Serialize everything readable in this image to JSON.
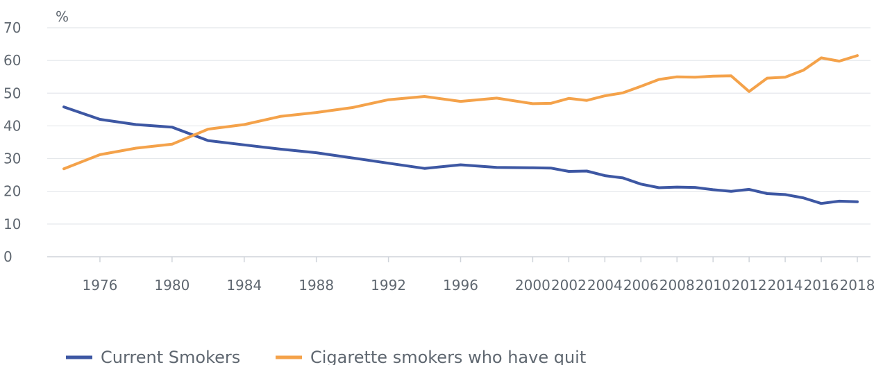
{
  "chart_data": {
    "type": "line",
    "unit_label": "%",
    "ylim": [
      0,
      70
    ],
    "y_ticks": [
      0,
      10,
      20,
      30,
      40,
      50,
      60,
      70
    ],
    "x_range": [
      1974,
      2018
    ],
    "x_tick_labels": [
      "1976",
      "1980",
      "1984",
      "1988",
      "1992",
      "1996",
      "2000",
      "2002",
      "2004",
      "2006",
      "2008",
      "2010",
      "2012",
      "2014",
      "2016",
      "2018"
    ],
    "grid": true,
    "legend_position": "bottom-left",
    "series": [
      {
        "name": "Current Smokers",
        "color": "#3d57a3",
        "points": [
          [
            1974,
            45.8
          ],
          [
            1976,
            42.0
          ],
          [
            1978,
            40.4
          ],
          [
            1980,
            39.6
          ],
          [
            1982,
            35.5
          ],
          [
            1984,
            34.2
          ],
          [
            1986,
            32.9
          ],
          [
            1988,
            31.8
          ],
          [
            1990,
            30.2
          ],
          [
            1992,
            28.6
          ],
          [
            1994,
            27.0
          ],
          [
            1996,
            28.1
          ],
          [
            1998,
            27.3
          ],
          [
            2000,
            27.2
          ],
          [
            2001,
            27.1
          ],
          [
            2002,
            26.1
          ],
          [
            2003,
            26.2
          ],
          [
            2004,
            24.8
          ],
          [
            2005,
            24.1
          ],
          [
            2006,
            22.2
          ],
          [
            2007,
            21.1
          ],
          [
            2008,
            21.3
          ],
          [
            2009,
            21.2
          ],
          [
            2010,
            20.5
          ],
          [
            2011,
            20.0
          ],
          [
            2012,
            20.6
          ],
          [
            2013,
            19.3
          ],
          [
            2014,
            19.0
          ],
          [
            2015,
            18.0
          ],
          [
            2016,
            16.3
          ],
          [
            2017,
            17.0
          ],
          [
            2018,
            16.8
          ]
        ]
      },
      {
        "name": "Cigarette smokers who have quit",
        "color": "#f4a24a",
        "points": [
          [
            1974,
            26.9
          ],
          [
            1976,
            31.2
          ],
          [
            1978,
            33.2
          ],
          [
            1980,
            34.4
          ],
          [
            1982,
            39.0
          ],
          [
            1984,
            40.4
          ],
          [
            1986,
            42.9
          ],
          [
            1988,
            44.1
          ],
          [
            1990,
            45.6
          ],
          [
            1992,
            48.0
          ],
          [
            1994,
            49.0
          ],
          [
            1996,
            47.5
          ],
          [
            1998,
            48.5
          ],
          [
            2000,
            46.8
          ],
          [
            2001,
            46.9
          ],
          [
            2002,
            48.4
          ],
          [
            2003,
            47.8
          ],
          [
            2004,
            49.2
          ],
          [
            2005,
            50.1
          ],
          [
            2006,
            52.1
          ],
          [
            2007,
            54.2
          ],
          [
            2008,
            55.0
          ],
          [
            2009,
            54.9
          ],
          [
            2010,
            55.2
          ],
          [
            2011,
            55.3
          ],
          [
            2012,
            50.5
          ],
          [
            2013,
            54.6
          ],
          [
            2014,
            54.9
          ],
          [
            2015,
            57.0
          ],
          [
            2016,
            60.8
          ],
          [
            2017,
            59.8
          ],
          [
            2018,
            61.5
          ]
        ]
      }
    ]
  }
}
